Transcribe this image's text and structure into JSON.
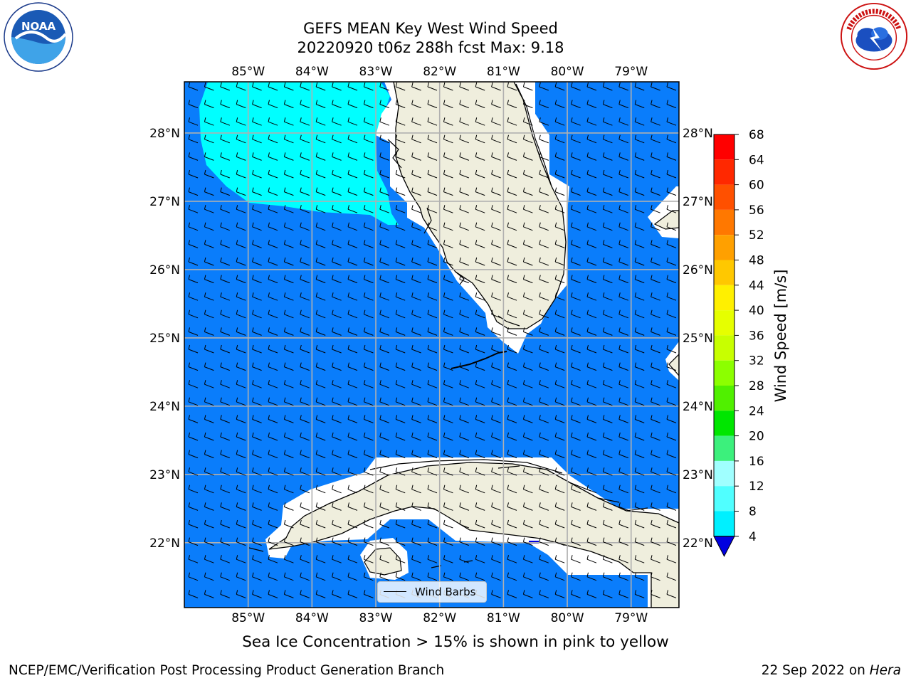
{
  "title": {
    "line1": "GEFS MEAN Key West Wind Speed",
    "line2": "20220920 t06z 288h fcst   Max: 9.18"
  },
  "logos": {
    "left": "noaa-logo",
    "right": "national-weather-service-logo",
    "left_text": "NOAA",
    "right_text": "NATIONAL WEATHER SERVICE"
  },
  "map": {
    "lon_labels": [
      "85°W",
      "84°W",
      "83°W",
      "82°W",
      "81°W",
      "80°W",
      "79°W"
    ],
    "lon_values": [
      -85,
      -84,
      -83,
      -82,
      -81,
      -80,
      -79
    ],
    "lat_labels": [
      "28°N",
      "27°N",
      "26°N",
      "25°N",
      "24°N",
      "23°N",
      "22°N"
    ],
    "lat_values": [
      28,
      27,
      26,
      25,
      24,
      23,
      22
    ],
    "lon_range": [
      -86,
      -78.25
    ],
    "lat_range": [
      21.05,
      28.75
    ],
    "gridlines": true,
    "colors": {
      "ocean": "#0a7dfb",
      "cyan_region": "#00ffff",
      "land": "#efeedd",
      "mask": "#ffffff",
      "grid": "#b0b0b0",
      "coast": "#000000"
    },
    "barb_color": "#000000"
  },
  "legend": {
    "label": "Wind Barbs",
    "location": "lower-center"
  },
  "colorbar": {
    "label": "Wind Speed [m/s]",
    "ticks": [
      "68",
      "64",
      "60",
      "56",
      "52",
      "48",
      "44",
      "40",
      "36",
      "32",
      "28",
      "24",
      "20",
      "16",
      "12",
      "8",
      "4"
    ],
    "levels": [
      4,
      8,
      12,
      16,
      20,
      24,
      28,
      32,
      36,
      40,
      44,
      48,
      52,
      56,
      60,
      64,
      68
    ],
    "colors_top_to_bottom": [
      "#ff0000",
      "#ff2800",
      "#ff5000",
      "#ff7800",
      "#ffa000",
      "#ffc800",
      "#fff000",
      "#e6ff00",
      "#c8ff00",
      "#8cff00",
      "#50f000",
      "#00e600",
      "#3cf07c",
      "#a0ffff",
      "#50ffff",
      "#00f0ff",
      "#00c0ff",
      "#0a7dfb"
    ],
    "extend_color": "#0000e0"
  },
  "caption": "Sea Ice Concentration > 15% is shown in pink to yellow",
  "footer": {
    "left": "NCEP/EMC/Verification Post Processing Product Generation Branch",
    "right_prefix": "22 Sep 2022 on ",
    "right_italic": "Hera"
  }
}
